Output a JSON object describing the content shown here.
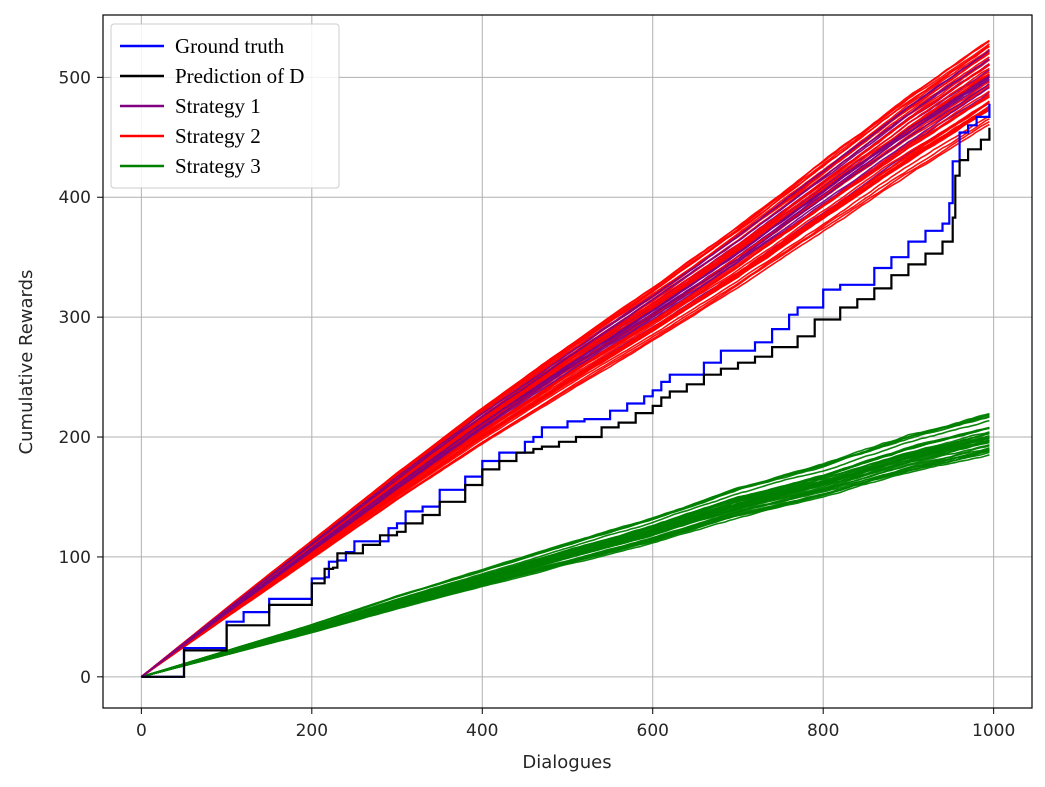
{
  "chart_data": {
    "type": "line",
    "title": "",
    "xlabel": "Dialogues",
    "ylabel": "Cumulative Rewards",
    "xlim": [
      -45,
      1045
    ],
    "ylim": [
      -26,
      552
    ],
    "xticks": [
      0,
      200,
      400,
      600,
      800,
      1000
    ],
    "yticks": [
      0,
      100,
      200,
      300,
      400,
      500
    ],
    "grid": true,
    "legend_position": "top-left",
    "series": [
      {
        "name": "Ground truth",
        "color": "#0000ff",
        "x": [
          0,
          50,
          100,
          120,
          150,
          200,
          215,
          220,
          230,
          240,
          250,
          270,
          290,
          300,
          310,
          330,
          350,
          380,
          400,
          420,
          450,
          460,
          470,
          500,
          520,
          550,
          570,
          590,
          600,
          610,
          620,
          660,
          680,
          720,
          740,
          760,
          770,
          800,
          820,
          860,
          880,
          900,
          920,
          940,
          948,
          952,
          960,
          970,
          980,
          995
        ],
        "y": [
          0,
          24,
          46,
          54,
          65,
          82,
          83,
          96,
          97,
          104,
          113,
          113,
          124,
          128,
          138,
          142,
          156,
          167,
          180,
          187,
          196,
          200,
          208,
          213,
          215,
          222,
          228,
          234,
          239,
          246,
          252,
          262,
          272,
          279,
          290,
          302,
          308,
          323,
          327,
          341,
          350,
          363,
          372,
          378,
          395,
          430,
          454,
          460,
          467,
          478
        ]
      },
      {
        "name": "Prediction of D",
        "color": "#000000",
        "x": [
          0,
          50,
          100,
          150,
          200,
          215,
          225,
          230,
          245,
          260,
          280,
          300,
          310,
          330,
          350,
          380,
          400,
          420,
          440,
          460,
          470,
          490,
          510,
          540,
          560,
          580,
          600,
          610,
          620,
          640,
          660,
          680,
          700,
          720,
          740,
          770,
          790,
          820,
          840,
          860,
          880,
          900,
          920,
          940,
          952,
          955,
          960,
          970,
          985,
          995
        ],
        "y": [
          0,
          22,
          43,
          60,
          78,
          90,
          91,
          103,
          103,
          110,
          118,
          121,
          128,
          135,
          146,
          160,
          173,
          180,
          187,
          190,
          192,
          196,
          200,
          208,
          212,
          220,
          226,
          233,
          238,
          244,
          252,
          257,
          262,
          267,
          275,
          284,
          298,
          308,
          315,
          324,
          335,
          344,
          353,
          363,
          383,
          418,
          431,
          440,
          448,
          458
        ]
      },
      {
        "name": "Strategy 1",
        "color": "#800080",
        "x": [
          0,
          100,
          200,
          300,
          400,
          500,
          600,
          700,
          800,
          900,
          995
        ],
        "y": [
          0,
          54,
          107,
          160,
          211,
          259,
          305,
          353,
          404,
          455,
          500
        ]
      },
      {
        "name": "Strategy 2",
        "color": "#ff0000",
        "x": [
          0,
          100,
          200,
          300,
          400,
          500,
          600,
          700,
          800,
          900,
          995
        ],
        "y": [
          0,
          54,
          107,
          160,
          211,
          259,
          305,
          353,
          404,
          455,
          500
        ]
      },
      {
        "name": "Strategy 3",
        "color": "#008000",
        "x": [
          0,
          100,
          200,
          300,
          400,
          500,
          600,
          700,
          800,
          900,
          995
        ],
        "y": [
          0,
          20,
          40,
          62,
          82,
          102,
          122,
          145,
          163,
          185,
          202
        ]
      }
    ],
    "band_runs": {
      "Strategy 1": {
        "runs": 12,
        "end_range": [
          478,
          522
        ]
      },
      "Strategy 2": {
        "runs": 40,
        "end_range": [
          460,
          532
        ]
      },
      "Strategy 3": {
        "runs": 40,
        "end_range": [
          185,
          222
        ]
      }
    }
  }
}
